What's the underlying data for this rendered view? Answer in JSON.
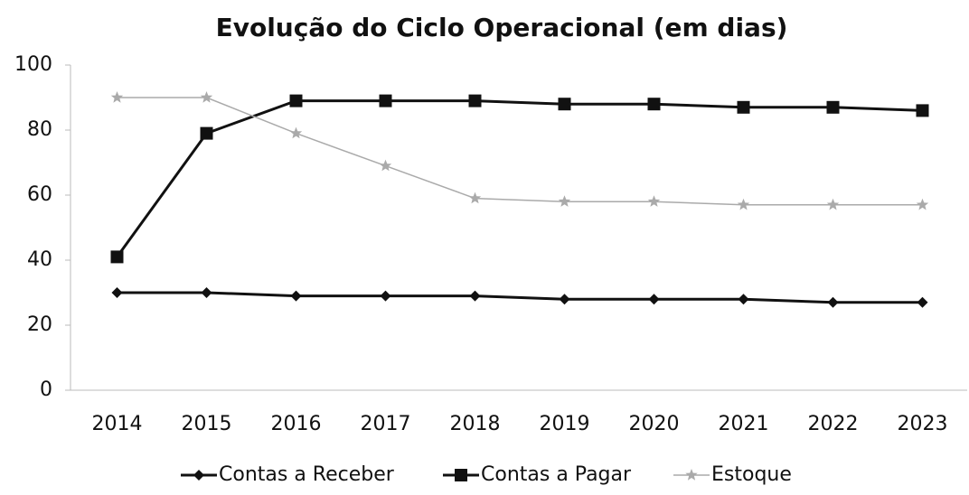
{
  "chart_data": {
    "type": "line",
    "title": "Evolução do Ciclo Operacional (em dias)",
    "categories": [
      "2014",
      "2015",
      "2016",
      "2017",
      "2018",
      "2019",
      "2020",
      "2021",
      "2022",
      "2023"
    ],
    "series": [
      {
        "name": "Contas a Receber",
        "color": "#111111",
        "marker": "diamond",
        "values": [
          30,
          30,
          29,
          29,
          29,
          28,
          28,
          28,
          27,
          27
        ]
      },
      {
        "name": "Contas a Pagar",
        "color": "#111111",
        "marker": "square",
        "values": [
          41,
          79,
          89,
          89,
          89,
          88,
          88,
          87,
          87,
          86
        ]
      },
      {
        "name": "Estoque",
        "color": "#aaaaaa",
        "marker": "star",
        "values": [
          90,
          90,
          79,
          69,
          59,
          58,
          58,
          57,
          57,
          57
        ]
      }
    ],
    "ylim": [
      0,
      100
    ],
    "yticks": [
      0,
      20,
      40,
      60,
      80,
      100
    ],
    "grid": false,
    "legend": "bottom"
  }
}
